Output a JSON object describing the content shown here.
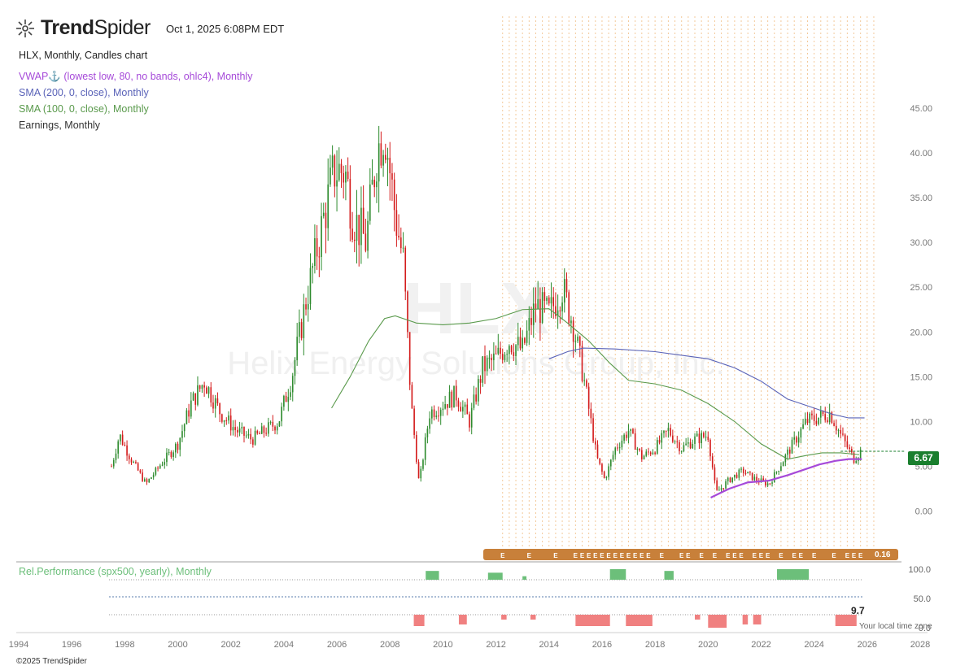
{
  "header": {
    "brand_bold": "Trend",
    "brand_light": "Spider",
    "timestamp": "Oct 1, 2025 6:08PM EDT"
  },
  "legend": {
    "title": "HLX, Monthly, Candles chart",
    "vwap": "VWAP⚓ (lowest low, 80, no bands, ohlc4), Monthly",
    "sma200": "SMA (200, 0, close), Monthly",
    "sma100": "SMA (100, 0, close), Monthly",
    "earnings": "Earnings, Monthly"
  },
  "watermark": {
    "ticker": "HLX",
    "company": "Helix Energy Solutions Group, Inc."
  },
  "colors": {
    "up": "#2e8b2e",
    "down": "#d41c1c",
    "vwap": "#a64ad9",
    "sma200": "#5a63b8",
    "sma100": "#5a9a4c",
    "earnings_bar": "#c8803a",
    "rel_pos": "#6cbf7a",
    "rel_neg": "#f08080",
    "last_price_bg": "#1a7f2e"
  },
  "price_badge": "6.67",
  "earnings_last_value": "0.16",
  "earnings_marker": "E",
  "rel_perf": {
    "label": "Rel.Performance (spx500, yearly), Monthly",
    "value": "9.7",
    "axis": [
      "100.0",
      "50.0",
      "0.0"
    ]
  },
  "footer": {
    "copyright": "©2025 TrendSpider",
    "local_time": "Your local time zone"
  },
  "chart_data": {
    "type": "candlestick",
    "y_ticks": [
      "45.00",
      "40.00",
      "35.00",
      "30.00",
      "25.00",
      "20.00",
      "15.00",
      "10.00",
      "5.00",
      "0.00"
    ],
    "x_ticks": [
      "1994",
      "1996",
      "1998",
      "2000",
      "2002",
      "2004",
      "2006",
      "2008",
      "2010",
      "2012",
      "2014",
      "2016",
      "2018",
      "2020",
      "2022",
      "2024",
      "2026",
      "2028"
    ],
    "ylim": [
      -1.5,
      48
    ],
    "xlim": [
      1994,
      2028
    ],
    "last_price": 6.67,
    "closes_anchor": [
      [
        1997.5,
        5.0
      ],
      [
        1997.8,
        8.5
      ],
      [
        1998.2,
        6.0
      ],
      [
        1998.8,
        3.0
      ],
      [
        1999.3,
        5.0
      ],
      [
        2000.0,
        7.5
      ],
      [
        2000.5,
        12.0
      ],
      [
        2001.0,
        14.5
      ],
      [
        2001.6,
        11.0
      ],
      [
        2002.2,
        9.0
      ],
      [
        2002.8,
        8.0
      ],
      [
        2003.3,
        9.0
      ],
      [
        2003.8,
        10.0
      ],
      [
        2004.3,
        15.0
      ],
      [
        2004.8,
        23.0
      ],
      [
        2005.3,
        30.0
      ],
      [
        2005.9,
        38.0
      ],
      [
        2006.3,
        38.0
      ],
      [
        2006.6,
        33.0
      ],
      [
        2007.1,
        30.0
      ],
      [
        2007.5,
        40.0
      ],
      [
        2007.8,
        43.0
      ],
      [
        2008.2,
        33.0
      ],
      [
        2008.5,
        28.0
      ],
      [
        2008.8,
        12.0
      ],
      [
        2009.1,
        3.0
      ],
      [
        2009.5,
        11.0
      ],
      [
        2010.0,
        12.0
      ],
      [
        2010.5,
        13.0
      ],
      [
        2011.0,
        10.0
      ],
      [
        2011.5,
        16.0
      ],
      [
        2012.0,
        17.0
      ],
      [
        2012.5,
        19.0
      ],
      [
        2013.0,
        18.0
      ],
      [
        2013.5,
        23.0
      ],
      [
        2014.0,
        22.0
      ],
      [
        2014.5,
        25.0
      ],
      [
        2014.9,
        21.0
      ],
      [
        2015.3,
        15.0
      ],
      [
        2015.8,
        6.0
      ],
      [
        2016.1,
        3.5
      ],
      [
        2016.5,
        7.0
      ],
      [
        2017.0,
        9.0
      ],
      [
        2017.5,
        6.0
      ],
      [
        2018.0,
        7.0
      ],
      [
        2018.5,
        9.0
      ],
      [
        2019.0,
        7.0
      ],
      [
        2019.5,
        8.0
      ],
      [
        2020.0,
        8.5
      ],
      [
        2020.3,
        2.0
      ],
      [
        2020.8,
        3.5
      ],
      [
        2021.3,
        4.5
      ],
      [
        2021.8,
        3.5
      ],
      [
        2022.3,
        3.0
      ],
      [
        2022.7,
        5.0
      ],
      [
        2023.2,
        7.5
      ],
      [
        2023.7,
        10.0
      ],
      [
        2024.2,
        10.5
      ],
      [
        2024.6,
        11.0
      ],
      [
        2025.0,
        8.5
      ],
      [
        2025.5,
        5.8
      ],
      [
        2025.75,
        6.67
      ]
    ],
    "sma100": [
      [
        2005.8,
        11.5
      ],
      [
        2006.5,
        15.0
      ],
      [
        2007.2,
        19.0
      ],
      [
        2007.8,
        21.5
      ],
      [
        2008.2,
        21.8
      ],
      [
        2009.0,
        21.0
      ],
      [
        2010.0,
        20.8
      ],
      [
        2011.0,
        21.0
      ],
      [
        2012.0,
        21.5
      ],
      [
        2013.0,
        22.5
      ],
      [
        2014.0,
        22.6
      ],
      [
        2014.7,
        21.0
      ],
      [
        2015.5,
        19.0
      ],
      [
        2016.3,
        16.5
      ],
      [
        2017.0,
        14.6
      ],
      [
        2018.0,
        14.2
      ],
      [
        2019.0,
        13.5
      ],
      [
        2020.0,
        12.0
      ],
      [
        2021.0,
        10.0
      ],
      [
        2022.0,
        7.5
      ],
      [
        2023.0,
        5.8
      ],
      [
        2023.7,
        6.2
      ],
      [
        2024.3,
        6.5
      ],
      [
        2025.0,
        6.5
      ],
      [
        2025.7,
        6.3
      ]
    ],
    "sma200": [
      [
        2014.0,
        17.0
      ],
      [
        2014.7,
        17.8
      ],
      [
        2015.3,
        18.2
      ],
      [
        2016.5,
        18.1
      ],
      [
        2018.0,
        17.8
      ],
      [
        2019.0,
        17.4
      ],
      [
        2020.0,
        17.0
      ],
      [
        2021.0,
        16.0
      ],
      [
        2022.0,
        14.5
      ],
      [
        2023.0,
        12.5
      ],
      [
        2024.0,
        11.5
      ],
      [
        2024.7,
        10.8
      ],
      [
        2025.3,
        10.4
      ],
      [
        2025.9,
        10.4
      ]
    ],
    "vwap": [
      [
        2020.1,
        1.5
      ],
      [
        2020.8,
        2.5
      ],
      [
        2021.5,
        3.2
      ],
      [
        2022.3,
        3.4
      ],
      [
        2023.0,
        4.0
      ],
      [
        2023.6,
        4.6
      ],
      [
        2024.2,
        5.2
      ],
      [
        2024.8,
        5.6
      ],
      [
        2025.3,
        5.8
      ],
      [
        2025.8,
        5.8
      ]
    ],
    "earnings_dates": [
      2012.25,
      2013.25,
      2014.25,
      2015.0,
      2015.25,
      2015.5,
      2015.75,
      2016.0,
      2016.25,
      2016.5,
      2016.75,
      2017.0,
      2017.25,
      2017.5,
      2017.75,
      2018.25,
      2019.0,
      2019.25,
      2019.75,
      2020.25,
      2020.75,
      2021.0,
      2021.25,
      2021.75,
      2022.0,
      2022.25,
      2022.75,
      2023.25,
      2023.5,
      2024.0,
      2024.75,
      2025.25,
      2025.5,
      2025.75
    ],
    "rel_perf_positive": [
      [
        2009.35,
        2009.85,
        0.25
      ],
      [
        2011.7,
        2012.25,
        0.2
      ],
      [
        2013.0,
        2013.15,
        0.1
      ],
      [
        2016.3,
        2016.9,
        0.3
      ],
      [
        2018.35,
        2018.7,
        0.25
      ],
      [
        2022.6,
        2023.8,
        0.3
      ]
    ],
    "rel_perf_negative": [
      [
        2008.9,
        2009.3,
        0.35
      ],
      [
        2010.6,
        2010.9,
        0.3
      ],
      [
        2012.2,
        2012.4,
        0.15
      ],
      [
        2013.3,
        2013.5,
        0.15
      ],
      [
        2015.0,
        2016.3,
        0.35
      ],
      [
        2016.9,
        2017.9,
        0.35
      ],
      [
        2019.5,
        2019.7,
        0.15
      ],
      [
        2020.0,
        2020.7,
        0.4
      ],
      [
        2021.3,
        2021.5,
        0.3
      ],
      [
        2021.7,
        2022.0,
        0.3
      ],
      [
        2024.8,
        2025.6,
        0.35
      ]
    ]
  }
}
